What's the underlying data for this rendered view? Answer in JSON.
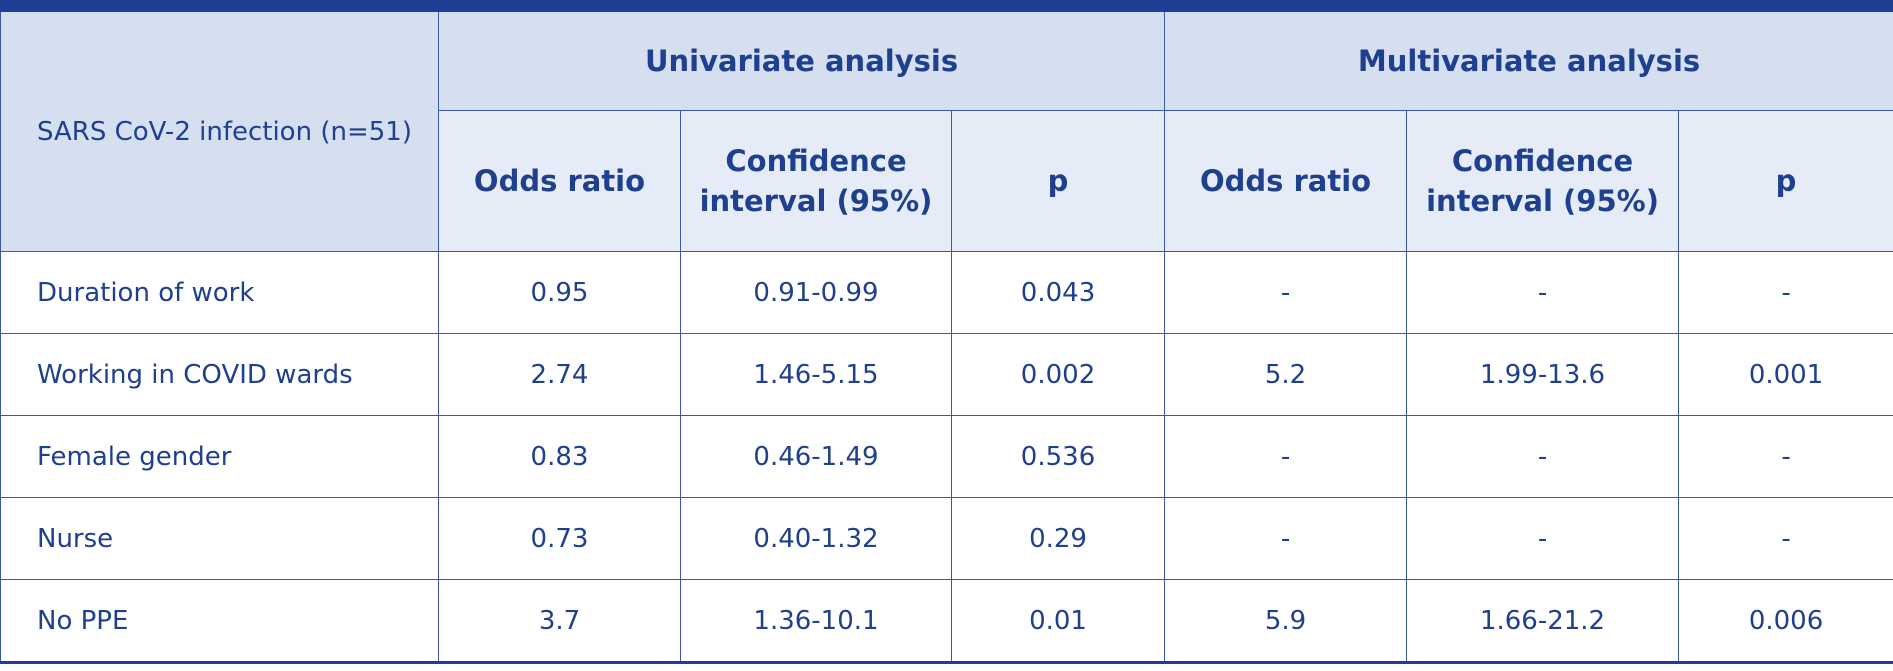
{
  "header": {
    "title": "SARS CoV-2 infection (n=51)",
    "groups": [
      "Univariate analysis",
      "Multivariate analysis"
    ],
    "columns": [
      "Odds ratio",
      "Confidence interval (95%)",
      "p",
      "Odds ratio",
      "Confidence interval (95%)",
      "p"
    ]
  },
  "table": {
    "rows": [
      [
        "Duration of work",
        "0.95",
        "0.91-0.99",
        "0.043",
        "-",
        "-",
        "-"
      ],
      [
        "Working in COVID wards",
        "2.74",
        "1.46-5.15",
        "0.002",
        "5.2",
        "1.99-13.6",
        "0.001"
      ],
      [
        "Female gender",
        "0.83",
        "0.46-1.49",
        "0.536",
        "-",
        "-",
        "-"
      ],
      [
        "Nurse",
        "0.73",
        "0.40-1.32",
        "0.29",
        "-",
        "-",
        "-"
      ],
      [
        "No PPE",
        "3.7",
        "1.36-10.1",
        "0.01",
        "5.9",
        "1.66-21.2",
        "0.006"
      ]
    ]
  }
}
